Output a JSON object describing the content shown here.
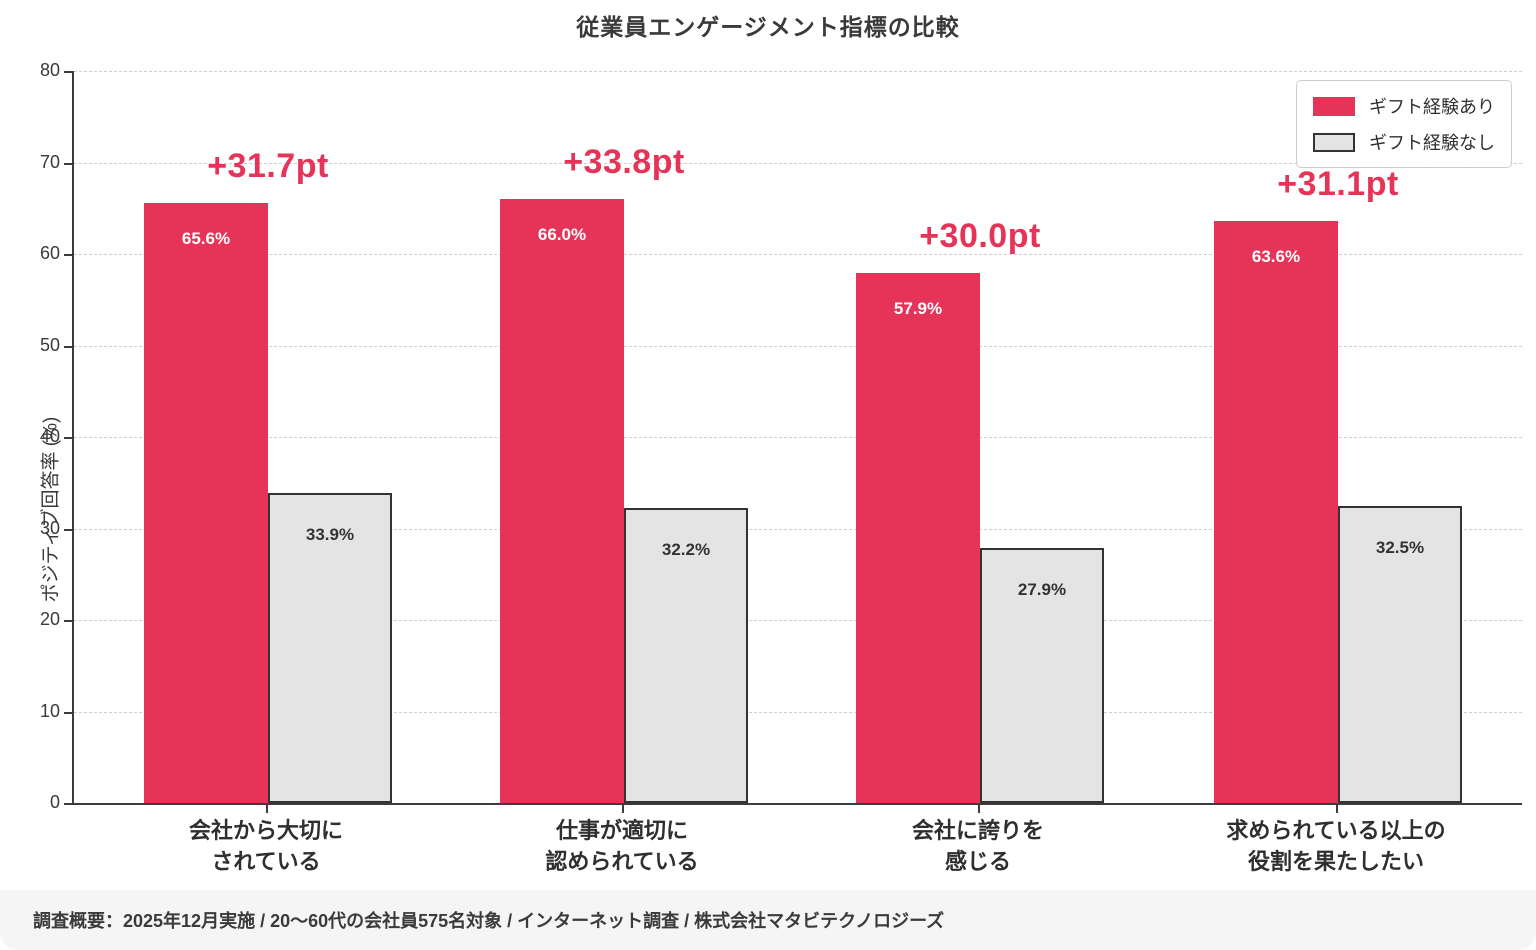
{
  "title": "従業員エンゲージメント指標の比較",
  "footer": {
    "text": "調査概要：2025年12月実施 / 20〜60代の会社員575名対象 / インターネット調査 / 株式会社マタビテクノロジーズ"
  },
  "colors": {
    "accent_pink": "#E63458",
    "bar_gray_fill": "#E4E4E4",
    "bar_gray_border": "#333333",
    "grid": "#CFCFCF",
    "axis": "#3C3C3C",
    "footer_bg": "#F5F5F5",
    "text_dark": "#333333"
  },
  "chart_data": {
    "type": "bar",
    "title": "従業員エンゲージメント指標の比較",
    "xlabel": "",
    "ylabel": "ポジティブ回答率 (%)",
    "ylim": [
      0,
      80
    ],
    "ytick_step": 10,
    "yticks": [
      0,
      10,
      20,
      30,
      40,
      50,
      60,
      70,
      80
    ],
    "grid": "horizontal-dashed",
    "legend_position": "upper right",
    "categories": [
      "会社から大切にされている",
      "仕事が適切に認められている",
      "会社に誇りを感じる",
      "求められている以上の役割を果たしたい"
    ],
    "categories_lines": [
      [
        "会社から大切に",
        "されている"
      ],
      [
        "仕事が適切に",
        "認められている"
      ],
      [
        "会社に誇りを",
        "感じる"
      ],
      [
        "求められている以上の",
        "役割を果たしたい"
      ]
    ],
    "series": [
      {
        "name": "ギフト経験あり",
        "color": "#E63458",
        "values": [
          65.6,
          66.0,
          57.9,
          63.6
        ],
        "labels": [
          "65.6%",
          "66.0%",
          "57.9%",
          "63.6%"
        ]
      },
      {
        "name": "ギフト経験なし",
        "color": "#E4E4E4",
        "border_color": "#333333",
        "values": [
          33.9,
          32.2,
          27.9,
          32.5
        ],
        "labels": [
          "33.9%",
          "32.2%",
          "27.9%",
          "32.5%"
        ]
      }
    ],
    "annotations": [
      "+31.7pt",
      "+33.8pt",
      "+30.0pt",
      "+31.1pt"
    ]
  }
}
